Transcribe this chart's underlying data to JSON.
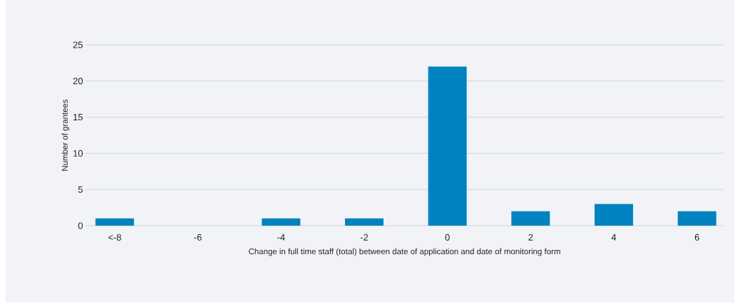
{
  "chart_data": {
    "type": "bar",
    "categories": [
      "<-8",
      "-6",
      "-4",
      "-2",
      "0",
      "2",
      "4",
      "6"
    ],
    "values": [
      1,
      0,
      1,
      1,
      22,
      2,
      3,
      2
    ],
    "color": "#0083c0",
    "xlabel": "Change in full time staff (total) between date of application and date of monitoring form",
    "ylabel": "Number of grantees",
    "ylim": [
      0,
      25
    ],
    "yticks": [
      0,
      5,
      10,
      15,
      20,
      25
    ],
    "grid": "y"
  }
}
